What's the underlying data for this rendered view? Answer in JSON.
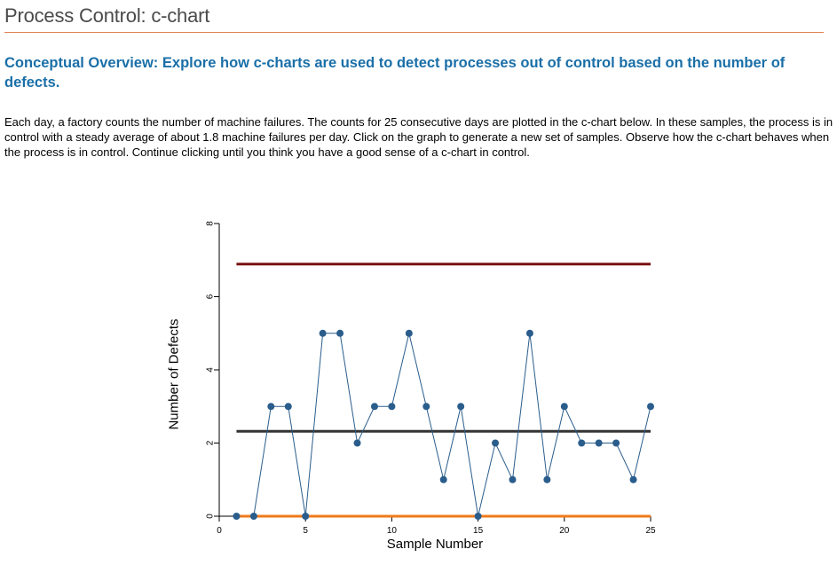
{
  "page": {
    "title": "Process Control: c-chart",
    "overview": "Conceptual Overview: Explore how c-charts are used to detect processes out of control based on the number of defects.",
    "intro": "Each day, a factory counts the number of machine failures. The counts for 25 consecutive days are plotted in the c-chart below. In these samples, the process is in control with a steady average of about 1.8 machine failures per day. Click on the graph to generate a new set of samples. Observe how the c-chart behaves when the process is in control. Continue clicking until you think you have a good sense of a c-chart in control."
  },
  "chart_data": {
    "type": "line",
    "xlabel": "Sample Number",
    "ylabel": "Number of Defects",
    "xlim": [
      0,
      25
    ],
    "ylim": [
      0,
      8
    ],
    "x_ticks": [
      0,
      5,
      10,
      15,
      20,
      25
    ],
    "y_ticks": [
      0,
      2,
      4,
      6,
      8
    ],
    "grid": false,
    "x": [
      1,
      2,
      3,
      4,
      5,
      6,
      7,
      8,
      9,
      10,
      11,
      12,
      13,
      14,
      15,
      16,
      17,
      18,
      19,
      20,
      21,
      22,
      23,
      24,
      25
    ],
    "values": [
      0,
      0,
      3,
      3,
      0,
      5,
      5,
      2,
      3,
      3,
      5,
      3,
      1,
      3,
      0,
      2,
      1,
      5,
      1,
      3,
      2,
      2,
      2,
      1,
      3
    ],
    "center_line": 2.32,
    "upper_control_limit": 6.89,
    "lower_control_limit": 0,
    "colors": {
      "series": "#2a5d8c",
      "center_line": "#333333",
      "upper_control_limit": "#7a1010",
      "lower_control_limit": "#f07a1a",
      "axis": "#000000"
    }
  }
}
